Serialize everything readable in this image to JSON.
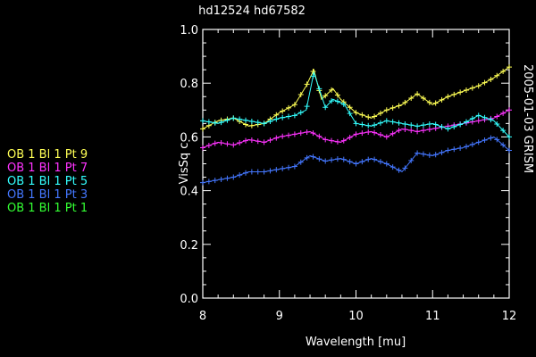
{
  "chart_data": {
    "type": "line",
    "title": "hd12524   hd67582",
    "xlabel": "Wavelength [mu]",
    "ylabel": "VisSq c",
    "side_label": "2005-01-03 GRISM",
    "xlim": [
      8,
      12
    ],
    "ylim": [
      0,
      1
    ],
    "x_ticks": [
      "8",
      "9",
      "10",
      "11",
      "12"
    ],
    "y_ticks": [
      "0.0",
      "0.2",
      "0.4",
      "0.6",
      "0.8",
      "1.0"
    ],
    "legend_placement": "left",
    "series": [
      {
        "name": "OB 1 Bl 1 Pt 9",
        "color": "#ffff55",
        "x": [
          8.0,
          8.2,
          8.4,
          8.6,
          8.8,
          9.0,
          9.2,
          9.35,
          9.45,
          9.55,
          9.7,
          9.8,
          10.0,
          10.2,
          10.4,
          10.6,
          10.8,
          11.0,
          11.2,
          11.4,
          11.6,
          11.8,
          12.0
        ],
        "y": [
          0.63,
          0.66,
          0.67,
          0.64,
          0.65,
          0.69,
          0.72,
          0.79,
          0.85,
          0.74,
          0.78,
          0.74,
          0.69,
          0.67,
          0.7,
          0.72,
          0.76,
          0.72,
          0.75,
          0.77,
          0.79,
          0.82,
          0.86
        ]
      },
      {
        "name": "OB 1 Bl 1 Pt 7",
        "color": "#ff33ff",
        "x": [
          8.0,
          8.2,
          8.4,
          8.6,
          8.8,
          9.0,
          9.2,
          9.4,
          9.6,
          9.8,
          10.0,
          10.2,
          10.4,
          10.6,
          10.8,
          11.0,
          11.2,
          11.4,
          11.6,
          11.8,
          12.0
        ],
        "y": [
          0.56,
          0.58,
          0.57,
          0.59,
          0.58,
          0.6,
          0.61,
          0.62,
          0.59,
          0.58,
          0.61,
          0.62,
          0.6,
          0.63,
          0.62,
          0.63,
          0.64,
          0.65,
          0.66,
          0.67,
          0.7
        ]
      },
      {
        "name": "OB 1 Bl 1 Pt 5",
        "color": "#33ffff",
        "x": [
          8.0,
          8.2,
          8.4,
          8.6,
          8.8,
          9.0,
          9.2,
          9.35,
          9.45,
          9.6,
          9.7,
          9.85,
          10.0,
          10.2,
          10.4,
          10.6,
          10.8,
          11.0,
          11.2,
          11.4,
          11.6,
          11.8,
          12.0
        ],
        "y": [
          0.66,
          0.65,
          0.67,
          0.66,
          0.65,
          0.67,
          0.68,
          0.7,
          0.84,
          0.71,
          0.74,
          0.72,
          0.65,
          0.64,
          0.66,
          0.65,
          0.64,
          0.65,
          0.63,
          0.65,
          0.68,
          0.66,
          0.6
        ]
      },
      {
        "name": "OB 1 Bl 1 Pt 3",
        "color": "#4477ff",
        "x": [
          8.0,
          8.2,
          8.4,
          8.6,
          8.8,
          9.0,
          9.2,
          9.4,
          9.6,
          9.8,
          10.0,
          10.2,
          10.4,
          10.6,
          10.8,
          11.0,
          11.2,
          11.4,
          11.6,
          11.8,
          12.0
        ],
        "y": [
          0.43,
          0.44,
          0.45,
          0.47,
          0.47,
          0.48,
          0.49,
          0.53,
          0.51,
          0.52,
          0.5,
          0.52,
          0.5,
          0.47,
          0.54,
          0.53,
          0.55,
          0.56,
          0.58,
          0.6,
          0.55
        ]
      },
      {
        "name": "OB 1 Bl 1 Pt 1",
        "color": "#33ff33",
        "x": [],
        "y": []
      }
    ]
  }
}
